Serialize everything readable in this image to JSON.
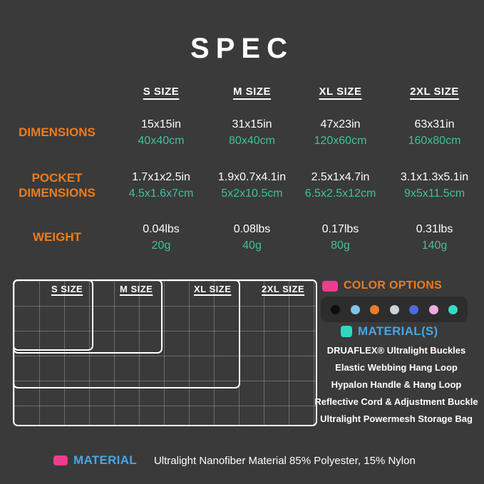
{
  "title": "SPEC",
  "table": {
    "columns": [
      "S SIZE",
      "M SIZE",
      "XL SIZE",
      "2XL SIZE"
    ],
    "rows": [
      {
        "label": "DIMENSIONS",
        "values": [
          {
            "in": "15x15in",
            "cm": "40x40cm"
          },
          {
            "in": "31x15in",
            "cm": "80x40cm"
          },
          {
            "in": "47x23in",
            "cm": "120x60cm"
          },
          {
            "in": "63x31in",
            "cm": "160x80cm"
          }
        ]
      },
      {
        "label": "POCKET DIMENSIONS",
        "values": [
          {
            "in": "1.7x1x2.5in",
            "cm": "4.5x1.6x7cm"
          },
          {
            "in": "1.9x0.7x4.1in",
            "cm": "5x2x10.5cm"
          },
          {
            "in": "2.5x1x4.7in",
            "cm": "6.5x2.5x12cm"
          },
          {
            "in": "3.1x1.3x5.1in",
            "cm": "9x5x11.5cm"
          }
        ]
      },
      {
        "label": "WEIGHT",
        "values": [
          {
            "in": "0.04lbs",
            "cm": "20g"
          },
          {
            "in": "0.08lbs",
            "cm": "40g"
          },
          {
            "in": "0.17lbs",
            "cm": "80g"
          },
          {
            "in": "0.31lbs",
            "cm": "140g"
          }
        ]
      }
    ]
  },
  "size_diagram": {
    "labels": [
      "S SIZE",
      "M SIZE",
      "XL SIZE",
      "2XL SIZE"
    ]
  },
  "color_options": {
    "title": "COLOR OPTIONS",
    "swatches": [
      "#0d0d0d",
      "#7cc5e9",
      "#f07a28",
      "#ccd2d6",
      "#4a6cd9",
      "#f3aadd",
      "#35d9c7"
    ]
  },
  "materials": {
    "title": "MATERIAL(S)",
    "items": [
      "DRUAFLEX® Ultralight Buckles",
      "Elastic Webbing Hang Loop",
      "Hypalon Handle & Hang Loop",
      "Reflective Cord & Adjustment Buckle",
      "Ultralight Powermesh Storage Bag"
    ]
  },
  "material_footer": {
    "label": "MATERIAL",
    "value": "Ultralight Nanofiber Material 85% Polyester, 15% Nylon"
  },
  "colors": {
    "background": "#3a3a3a",
    "accent_orange": "#ef7b1a",
    "accent_teal": "#41c09e",
    "accent_blue": "#45a6e8",
    "swatch_panel": "#2d2d2d",
    "pink_tag": "#ee3d8f",
    "teal_tag": "#2fd9c0"
  }
}
